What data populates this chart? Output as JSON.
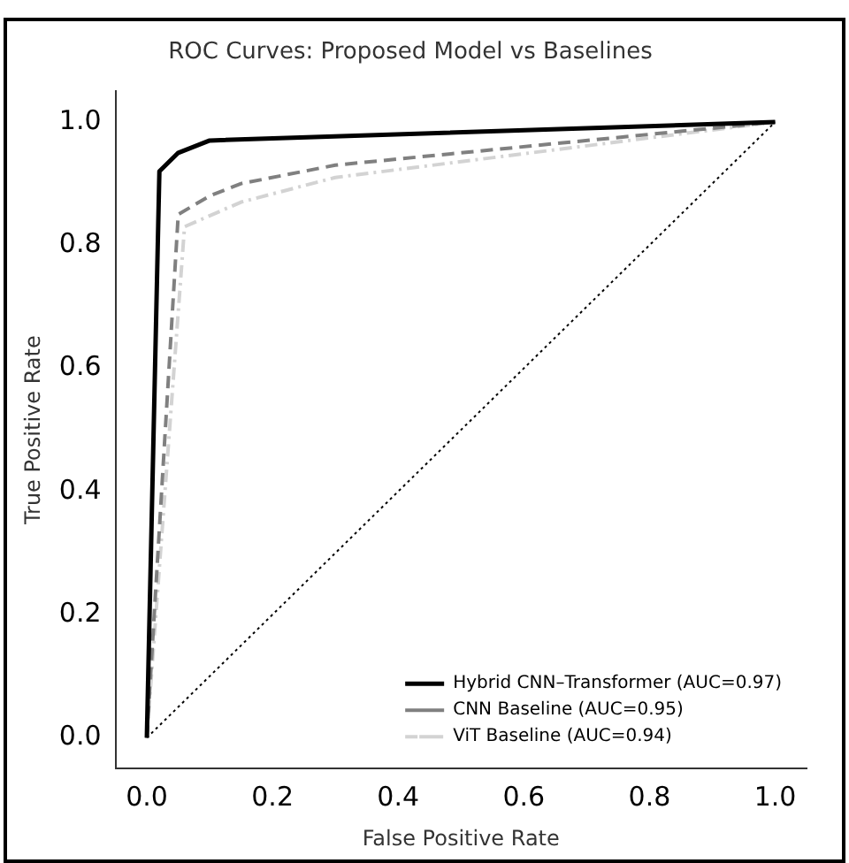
{
  "chart_data": {
    "type": "line",
    "title": "ROC Curves: Proposed Model vs Baselines",
    "xlabel": "False Positive Rate",
    "ylabel": "True Positive Rate",
    "xlim": [
      -0.05,
      1.05
    ],
    "ylim": [
      -0.05,
      1.05
    ],
    "xticks": [
      {
        "value": 0,
        "label": "0.0"
      },
      0.2,
      0.4,
      0.6,
      0.8,
      {
        "value": 1,
        "label": "1.0"
      }
    ],
    "yticks": [
      {
        "value": 0,
        "label": "0.0"
      },
      0.2,
      0.4,
      0.6,
      0.8,
      {
        "value": 1,
        "label": "1.0"
      }
    ],
    "grid": false,
    "legend": "bottom right",
    "marker": "none",
    "series": [
      {
        "name": "Hybrid CNN–Transformer (AUC=0.97)",
        "color": "#000000",
        "line_style": "solid",
        "x": [
          0,
          0.02,
          0.05,
          0.1,
          1
        ],
        "values": [
          0,
          0.92,
          0.95,
          0.97,
          1
        ]
      },
      {
        "name": "CNN Baseline (AUC=0.95)",
        "color": "#808080",
        "line_style": "dashed",
        "x": [
          0,
          0.05,
          0.1,
          0.15,
          0.3,
          1
        ],
        "values": [
          0,
          0.85,
          0.88,
          0.9,
          0.93,
          1
        ]
      },
      {
        "name": "ViT Baseline (AUC=0.94)",
        "color": "#d3d3d3",
        "line_style": "dashdot",
        "x": [
          0,
          0.06,
          0.15,
          0.3,
          1
        ],
        "values": [
          0,
          0.83,
          0.87,
          0.91,
          1
        ]
      },
      {
        "color": "#000000",
        "line_style": "dotted",
        "x": [
          0,
          1
        ],
        "values": [
          0,
          1
        ]
      }
    ]
  }
}
